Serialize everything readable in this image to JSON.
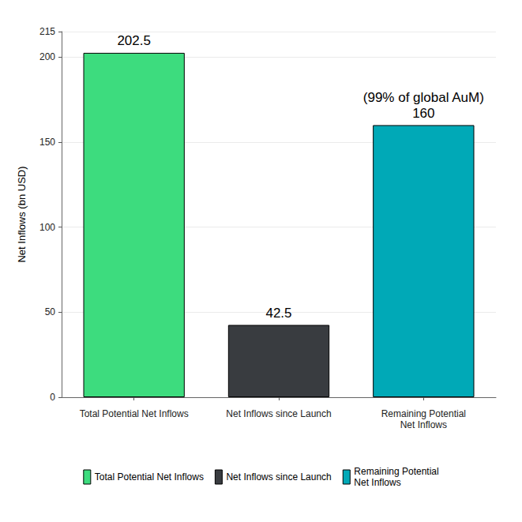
{
  "chart_data": {
    "type": "bar",
    "y_label": "Net Inflows (bn USD)",
    "categories": [
      "Total Potential Net Inflows",
      "Net Inflows since Launch",
      "Remaining Potential\nNet Inflows"
    ],
    "values": [
      202.5,
      42.5,
      160
    ],
    "colors": [
      "#3ddc7e",
      "#393c40",
      "#00a9b7"
    ],
    "ylim": [
      0,
      215
    ],
    "yticks": [
      0,
      50,
      100,
      150,
      200
    ],
    "grid": true,
    "data_labels": true,
    "legend": "bottom",
    "annotations": [
      {
        "category": "Remaining Potential\nNet Inflows",
        "text": "(99% of global AuM)"
      }
    ]
  }
}
